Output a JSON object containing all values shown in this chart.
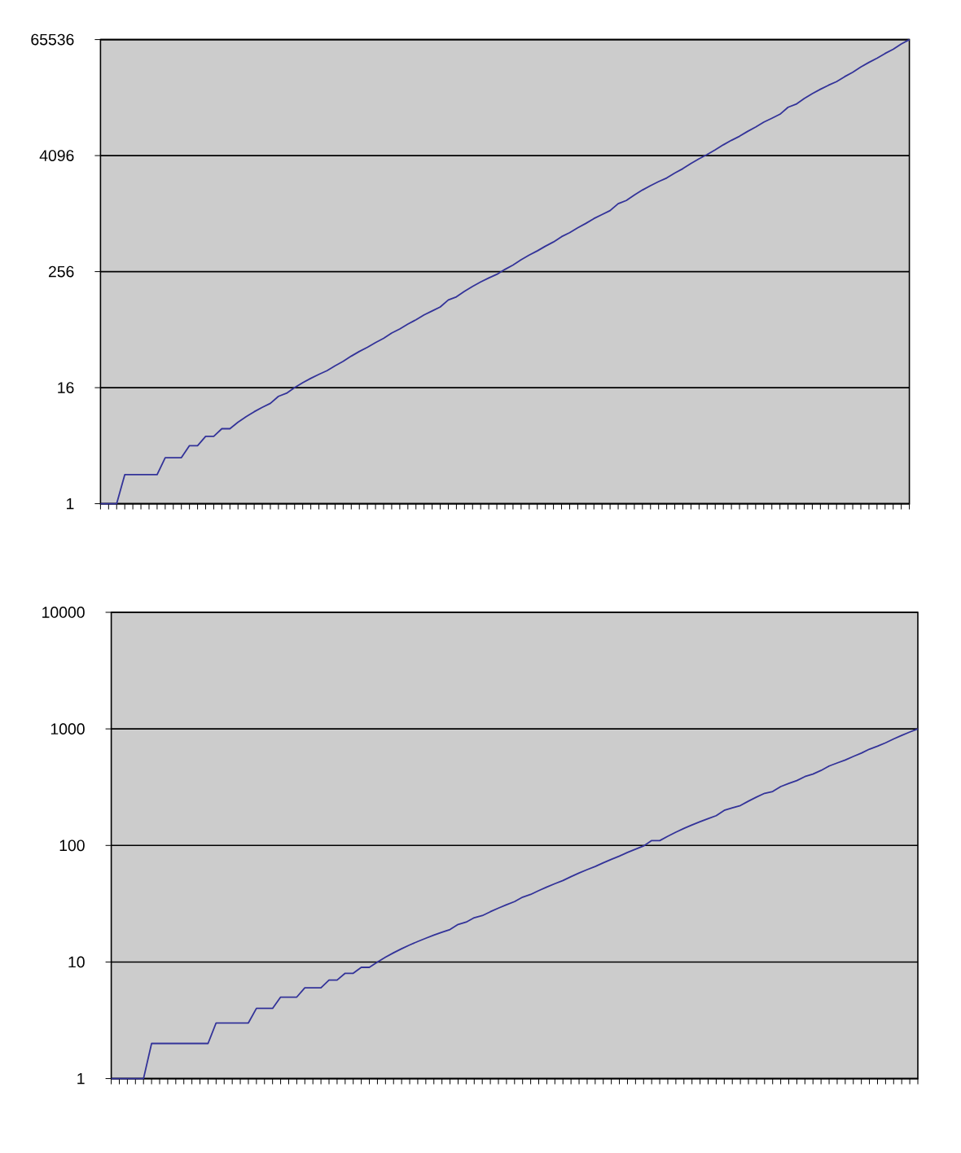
{
  "chart_data": [
    {
      "type": "line",
      "categories": [
        null,
        null,
        null,
        null,
        null,
        null,
        null,
        null,
        null,
        null,
        null,
        null,
        null,
        null,
        null,
        null,
        null,
        null,
        null,
        null,
        null,
        null,
        null,
        null,
        null,
        null,
        null,
        null,
        null,
        null,
        null,
        null,
        null,
        null,
        null,
        null,
        null,
        null,
        null,
        null,
        null,
        null,
        null,
        null,
        null,
        null,
        null,
        null,
        null,
        null,
        null,
        null,
        null,
        null,
        null,
        null,
        null,
        null,
        null,
        null,
        null,
        null,
        null,
        null,
        null,
        null,
        null,
        null,
        null,
        null,
        null,
        null,
        null,
        null,
        null,
        null,
        null,
        null,
        null,
        null,
        null,
        null,
        null,
        null,
        null,
        null,
        null,
        null,
        null,
        null,
        null,
        null,
        null,
        null,
        null,
        null,
        null,
        null,
        null,
        null,
        null
      ],
      "values": [
        1,
        1,
        1,
        2,
        2,
        2,
        2,
        2,
        3,
        3,
        3,
        4,
        4,
        5,
        5,
        6,
        6,
        7,
        8,
        9,
        10,
        11,
        13,
        14,
        16,
        18,
        20,
        22,
        24,
        27,
        30,
        34,
        38,
        42,
        47,
        52,
        59,
        65,
        73,
        81,
        91,
        100,
        110,
        130,
        140,
        160,
        180,
        200,
        220,
        240,
        270,
        300,
        340,
        380,
        420,
        470,
        520,
        590,
        650,
        730,
        810,
        910,
        1000,
        1100,
        1300,
        1400,
        1600,
        1800,
        2000,
        2200,
        2400,
        2700,
        3000,
        3400,
        3800,
        4200,
        4700,
        5300,
        5900,
        6500,
        7300,
        8100,
        9100,
        10000,
        11000,
        13000,
        14000,
        16000,
        18000,
        20000,
        22000,
        24000,
        27000,
        30000,
        34000,
        38000,
        42000,
        47000,
        52000,
        59000,
        65536
      ],
      "color": "#333399",
      "ylim": [
        1,
        65536
      ],
      "yticks": [
        1,
        16,
        256,
        4096,
        65536
      ],
      "log": "y",
      "grid": "y",
      "marker": "none"
    },
    {
      "type": "line",
      "categories": [
        null,
        null,
        null,
        null,
        null,
        null,
        null,
        null,
        null,
        null,
        null,
        null,
        null,
        null,
        null,
        null,
        null,
        null,
        null,
        null,
        null,
        null,
        null,
        null,
        null,
        null,
        null,
        null,
        null,
        null,
        null,
        null,
        null,
        null,
        null,
        null,
        null,
        null,
        null,
        null,
        null,
        null,
        null,
        null,
        null,
        null,
        null,
        null,
        null,
        null,
        null,
        null,
        null,
        null,
        null,
        null,
        null,
        null,
        null,
        null,
        null,
        null,
        null,
        null,
        null,
        null,
        null,
        null,
        null,
        null,
        null,
        null,
        null,
        null,
        null,
        null,
        null,
        null,
        null,
        null,
        null,
        null,
        null,
        null,
        null,
        null,
        null,
        null,
        null,
        null,
        null,
        null,
        null,
        null,
        null,
        null,
        null,
        null,
        null,
        null,
        null
      ],
      "values": [
        1,
        1,
        1,
        1,
        1,
        2,
        2,
        2,
        2,
        2,
        2,
        2,
        2,
        3,
        3,
        3,
        3,
        3,
        4,
        4,
        4,
        5,
        5,
        5,
        6,
        6,
        6,
        7,
        7,
        8,
        8,
        9,
        9,
        10,
        11,
        12,
        13,
        14,
        15,
        16,
        17,
        18,
        19,
        21,
        22,
        24,
        25,
        27,
        29,
        31,
        33,
        36,
        38,
        41,
        44,
        47,
        50,
        54,
        58,
        62,
        66,
        71,
        76,
        81,
        87,
        93,
        99,
        110,
        110,
        120,
        130,
        140,
        150,
        160,
        170,
        180,
        200,
        210,
        220,
        240,
        260,
        280,
        290,
        320,
        340,
        360,
        390,
        410,
        440,
        480,
        510,
        540,
        580,
        620,
        670,
        710,
        760,
        820,
        880,
        940,
        1000
      ],
      "color": "#333399",
      "ylim": [
        1,
        10000
      ],
      "yticks": [
        1,
        10,
        100,
        1000,
        10000
      ],
      "log": "y",
      "grid": "y",
      "marker": "none"
    }
  ]
}
